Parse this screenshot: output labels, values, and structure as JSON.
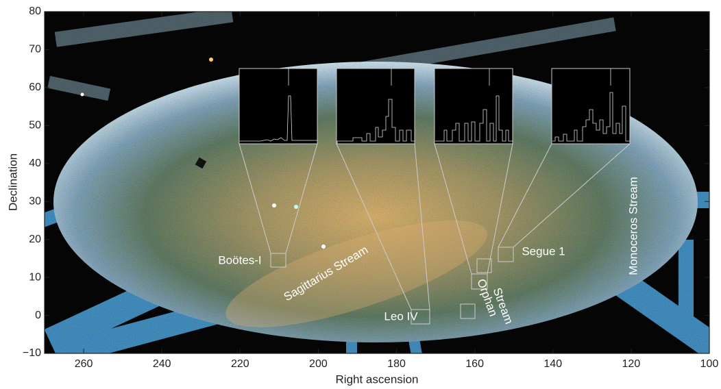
{
  "chart_data": {
    "type": "image",
    "xlabel": "Right ascension",
    "ylabel": "Declination",
    "xlim": [
      270,
      100
    ],
    "ylim": [
      -10,
      80
    ],
    "xticks": [
      260,
      240,
      220,
      200,
      180,
      160,
      140,
      120,
      100
    ],
    "yticks": [
      {
        "value": -10,
        "label": "−10"
      },
      0,
      10,
      20,
      30,
      40,
      50,
      60,
      70,
      80
    ],
    "annotations": [
      "Boötes-I",
      "Sagittarius Stream",
      "Leo IV",
      "Orphan",
      "Stream",
      "Segue 1",
      "Monoceros Stream"
    ]
  }
}
